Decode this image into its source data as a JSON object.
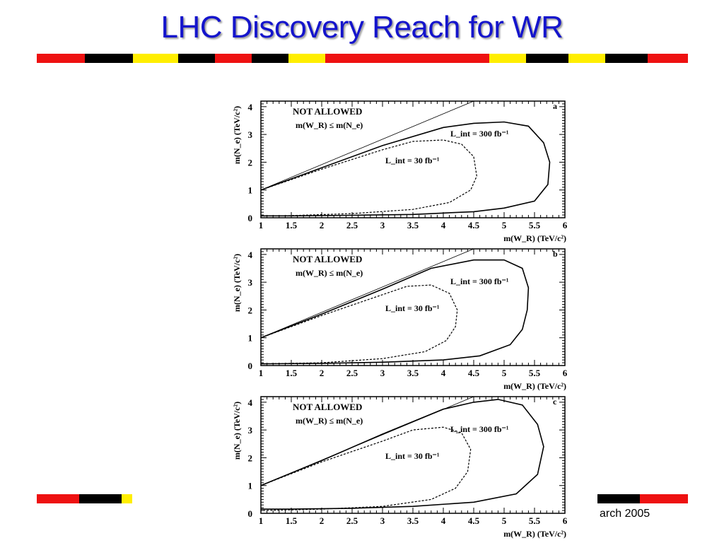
{
  "slide": {
    "title": "LHC Discovery Reach for WR",
    "footer_date": "arch 2005"
  },
  "colors": {
    "title": "#1414cc",
    "stripe_red": "#ee1111",
    "stripe_black": "#000000",
    "stripe_yellow": "#ffee00"
  },
  "chart_data": [
    {
      "type": "line",
      "panel_label": "a",
      "xlabel": "m(W_R) (TeV/c²)",
      "ylabel": "m(N_e) (TeV/c²)",
      "xlim": [
        1,
        6
      ],
      "ylim": [
        0,
        4.2
      ],
      "xticks": [
        "1",
        "1.5",
        "2",
        "2.5",
        "3",
        "3.5",
        "4",
        "4.5",
        "5",
        "5.5",
        "6"
      ],
      "yticks": [
        "0",
        "1",
        "2",
        "3",
        "4"
      ],
      "annotations": [
        "NOT ALLOWED",
        "m(W_R) ≤ m(N_e)"
      ],
      "series": [
        {
          "name": "L_int = 300 fb⁻¹",
          "style": "solid",
          "points": [
            [
              1,
              1.0
            ],
            [
              2,
              1.8
            ],
            [
              3,
              2.6
            ],
            [
              4,
              3.25
            ],
            [
              4.5,
              3.4
            ],
            [
              5,
              3.45
            ],
            [
              5.4,
              3.3
            ],
            [
              5.65,
              2.7
            ],
            [
              5.75,
              2.0
            ],
            [
              5.72,
              1.2
            ],
            [
              5.5,
              0.6
            ],
            [
              5.0,
              0.35
            ],
            [
              4.5,
              0.22
            ],
            [
              3.5,
              0.12
            ],
            [
              2.5,
              0.09
            ],
            [
              1.5,
              0.07
            ],
            [
              1,
              0.07
            ]
          ]
        },
        {
          "name": "L_int = 30 fb⁻¹",
          "style": "dashed",
          "points": [
            [
              1,
              1.0
            ],
            [
              2,
              1.75
            ],
            [
              3,
              2.45
            ],
            [
              3.5,
              2.75
            ],
            [
              4,
              2.8
            ],
            [
              4.3,
              2.65
            ],
            [
              4.5,
              2.2
            ],
            [
              4.55,
              1.5
            ],
            [
              4.45,
              1.0
            ],
            [
              4.1,
              0.55
            ],
            [
              3.5,
              0.3
            ],
            [
              2.5,
              0.15
            ],
            [
              1.5,
              0.08
            ],
            [
              1,
              0.06
            ]
          ]
        }
      ],
      "boundary": {
        "name": "m(W_R) = m(N_e)",
        "points": [
          [
            1,
            1.0
          ],
          [
            4.5,
            4.2
          ]
        ]
      }
    },
    {
      "type": "line",
      "panel_label": "b",
      "xlabel": "m(W_R) (TeV/c²)",
      "ylabel": "m(N_e) (TeV/c²)",
      "xlim": [
        1,
        6
      ],
      "ylim": [
        0,
        4.2
      ],
      "xticks": [
        "1",
        "1.5",
        "2",
        "2.5",
        "3",
        "3.5",
        "4",
        "4.5",
        "5",
        "5.5",
        "6"
      ],
      "yticks": [
        "0",
        "1",
        "2",
        "3",
        "4"
      ],
      "annotations": [
        "NOT ALLOWED",
        "m(W_R) ≤ m(N_e)"
      ],
      "series": [
        {
          "name": "L_int = 300 fb⁻¹",
          "style": "solid",
          "points": [
            [
              1,
              1.0
            ],
            [
              2,
              1.85
            ],
            [
              3,
              2.75
            ],
            [
              3.8,
              3.5
            ],
            [
              4.5,
              3.8
            ],
            [
              5,
              3.8
            ],
            [
              5.3,
              3.5
            ],
            [
              5.4,
              2.8
            ],
            [
              5.38,
              2.0
            ],
            [
              5.3,
              1.3
            ],
            [
              5.1,
              0.75
            ],
            [
              4.6,
              0.35
            ],
            [
              4,
              0.2
            ],
            [
              3,
              0.12
            ],
            [
              2,
              0.08
            ],
            [
              1,
              0.06
            ]
          ]
        },
        {
          "name": "L_int = 30 fb⁻¹",
          "style": "dashed",
          "points": [
            [
              1,
              1.0
            ],
            [
              2,
              1.8
            ],
            [
              3,
              2.55
            ],
            [
              3.4,
              2.85
            ],
            [
              3.8,
              2.9
            ],
            [
              4.1,
              2.6
            ],
            [
              4.23,
              2.0
            ],
            [
              4.2,
              1.4
            ],
            [
              4.05,
              0.9
            ],
            [
              3.7,
              0.5
            ],
            [
              3,
              0.25
            ],
            [
              2,
              0.1
            ],
            [
              1,
              0.06
            ]
          ]
        }
      ],
      "boundary": {
        "name": "m(W_R) = m(N_e)",
        "points": [
          [
            1,
            1.0
          ],
          [
            4.5,
            4.2
          ]
        ]
      }
    },
    {
      "type": "line",
      "panel_label": "c",
      "xlabel": "m(W_R) (TeV/c²)",
      "ylabel": "m(N_e) (TeV/c²)",
      "xlim": [
        1,
        6
      ],
      "ylim": [
        0,
        4.2
      ],
      "xticks": [
        "1",
        "1.5",
        "2",
        "2.5",
        "3",
        "3.5",
        "4",
        "4.5",
        "5",
        "5.5",
        "6"
      ],
      "yticks": [
        "0",
        "1",
        "2",
        "3",
        "4"
      ],
      "annotations": [
        "NOT ALLOWED",
        "m(W_R) ≤ m(N_e)"
      ],
      "series": [
        {
          "name": "L_int = 300 fb⁻¹",
          "style": "solid",
          "points": [
            [
              1,
              1.0
            ],
            [
              2,
              1.9
            ],
            [
              3,
              2.85
            ],
            [
              4,
              3.75
            ],
            [
              4.5,
              4.0
            ],
            [
              4.9,
              4.1
            ],
            [
              5.3,
              3.9
            ],
            [
              5.55,
              3.2
            ],
            [
              5.65,
              2.4
            ],
            [
              5.55,
              1.4
            ],
            [
              5.2,
              0.7
            ],
            [
              4.5,
              0.4
            ],
            [
              3.5,
              0.25
            ],
            [
              2.5,
              0.18
            ],
            [
              1.5,
              0.15
            ],
            [
              1,
              0.15
            ]
          ]
        },
        {
          "name": "L_int = 30 fb⁻¹",
          "style": "dashed",
          "points": [
            [
              1,
              1.0
            ],
            [
              2,
              1.85
            ],
            [
              3,
              2.6
            ],
            [
              3.5,
              3.0
            ],
            [
              4,
              3.1
            ],
            [
              4.3,
              2.9
            ],
            [
              4.45,
              2.3
            ],
            [
              4.4,
              1.5
            ],
            [
              4.2,
              0.9
            ],
            [
              3.8,
              0.5
            ],
            [
              3,
              0.25
            ],
            [
              2,
              0.15
            ],
            [
              1,
              0.1
            ]
          ]
        }
      ],
      "boundary": {
        "name": "m(W_R) = m(N_e)",
        "points": [
          [
            1,
            1.0
          ],
          [
            4.5,
            4.2
          ]
        ]
      }
    }
  ]
}
